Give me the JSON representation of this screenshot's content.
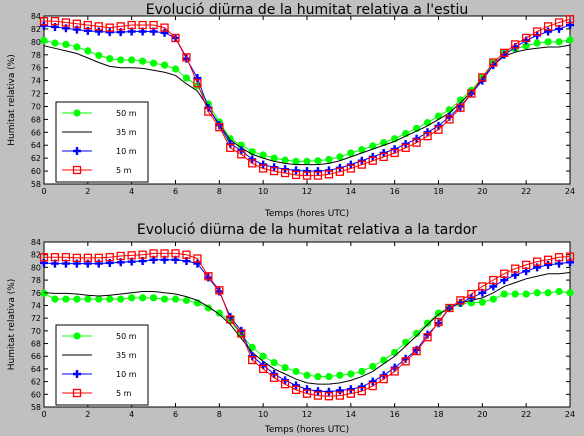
{
  "colors": {
    "background": "#c0c0c0",
    "plot": "#ffffff",
    "m50": "#00ff00",
    "m35": "#000000",
    "m10": "#0000ff",
    "m5": "#ff0000"
  },
  "chart_data": [
    {
      "type": "line",
      "title": "Evolució diürna de la humitat relativa a l'estiu",
      "xlabel": "Temps (hores UTC)",
      "ylabel": "Humitat relativa (%)",
      "xlim": [
        0,
        24
      ],
      "ylim": [
        58,
        84
      ],
      "xticks": [
        0,
        2,
        4,
        6,
        8,
        10,
        12,
        14,
        16,
        18,
        20,
        22,
        24
      ],
      "yticks": [
        58,
        60,
        62,
        64,
        66,
        68,
        70,
        72,
        74,
        76,
        78,
        80,
        82,
        84
      ],
      "grid": false,
      "legend_position": "bottom-left",
      "series": [
        {
          "name": "50 m",
          "marker": "circle",
          "color": "#00ff00",
          "x": [
            0,
            0.5,
            1,
            1.5,
            2,
            2.5,
            3,
            3.5,
            4,
            4.5,
            5,
            5.5,
            6,
            6.5,
            7,
            7.5,
            8,
            8.5,
            9,
            9.5,
            10,
            10.5,
            11,
            11.5,
            12,
            12.5,
            13,
            13.5,
            14,
            14.5,
            15,
            15.5,
            16,
            16.5,
            17,
            17.5,
            18,
            18.5,
            19,
            19.5,
            20,
            20.5,
            21,
            21.5,
            22,
            22.5,
            23,
            23.5,
            24
          ],
          "y": [
            80.2,
            79.8,
            79.6,
            79.2,
            78.6,
            77.9,
            77.4,
            77.2,
            77.2,
            77.0,
            76.7,
            76.4,
            75.8,
            74.4,
            73.2,
            70.4,
            67.6,
            65.0,
            64.0,
            63.0,
            62.5,
            62.0,
            61.7,
            61.5,
            61.5,
            61.6,
            61.8,
            62.2,
            62.8,
            63.3,
            63.9,
            64.4,
            65.0,
            65.8,
            66.6,
            67.5,
            68.5,
            69.5,
            71.0,
            72.5,
            74.5,
            76.8,
            78.3,
            78.9,
            79.4,
            79.8,
            80.0,
            80.0,
            80.3
          ]
        },
        {
          "name": "35 m",
          "marker": "none",
          "color": "#000000",
          "x": [
            0,
            0.5,
            1,
            1.5,
            2,
            2.5,
            3,
            3.5,
            4,
            4.5,
            5,
            5.5,
            6,
            6.5,
            7,
            7.5,
            8,
            8.5,
            9,
            9.5,
            10,
            10.5,
            11,
            11.5,
            12,
            12.5,
            13,
            13.5,
            14,
            14.5,
            15,
            15.5,
            16,
            16.5,
            17,
            17.5,
            18,
            18.5,
            19,
            19.5,
            20,
            20.5,
            21,
            21.5,
            22,
            22.5,
            23,
            23.5,
            24
          ],
          "y": [
            79.4,
            79.0,
            78.6,
            78.2,
            77.5,
            76.8,
            76.2,
            76.0,
            76.0,
            75.9,
            75.6,
            75.3,
            74.8,
            73.5,
            72.4,
            69.8,
            67.2,
            64.8,
            63.6,
            62.6,
            62.0,
            61.5,
            61.2,
            61.0,
            61.0,
            61.0,
            61.2,
            61.6,
            62.2,
            62.8,
            63.4,
            64.0,
            64.6,
            65.4,
            66.2,
            67.0,
            68.0,
            69.0,
            70.6,
            72.2,
            74.2,
            76.4,
            77.8,
            78.4,
            78.8,
            79.0,
            79.2,
            79.2,
            79.5
          ]
        },
        {
          "name": "10 m",
          "marker": "plus",
          "color": "#0000ff",
          "x": [
            0,
            0.5,
            1,
            1.5,
            2,
            2.5,
            3,
            3.5,
            4,
            4.5,
            5,
            5.5,
            6,
            6.5,
            7,
            7.5,
            8,
            8.5,
            9,
            9.5,
            10,
            10.5,
            11,
            11.5,
            12,
            12.5,
            13,
            13.5,
            14,
            14.5,
            15,
            15.5,
            16,
            16.5,
            17,
            17.5,
            18,
            18.5,
            19,
            19.5,
            20,
            20.5,
            21,
            21.5,
            22,
            22.5,
            23,
            23.5,
            24
          ],
          "y": [
            82.5,
            82.3,
            82.1,
            81.9,
            81.7,
            81.6,
            81.5,
            81.5,
            81.6,
            81.6,
            81.6,
            81.4,
            80.6,
            77.4,
            74.4,
            69.8,
            67.1,
            64.2,
            63.2,
            61.8,
            61.0,
            60.6,
            60.3,
            60.1,
            60.0,
            60.0,
            60.1,
            60.5,
            61.0,
            61.6,
            62.2,
            62.8,
            63.4,
            64.2,
            65.0,
            66.0,
            67.0,
            68.4,
            70.0,
            72.0,
            74.0,
            76.4,
            78.0,
            79.2,
            80.2,
            81.0,
            81.6,
            82.0,
            82.6
          ]
        },
        {
          "name": "5 m",
          "marker": "square",
          "color": "#ff0000",
          "x": [
            0,
            0.5,
            1,
            1.5,
            2,
            2.5,
            3,
            3.5,
            4,
            4.5,
            5,
            5.5,
            6,
            6.5,
            7,
            7.5,
            8,
            8.5,
            9,
            9.5,
            10,
            10.5,
            11,
            11.5,
            12,
            12.5,
            13,
            13.5,
            14,
            14.5,
            15,
            15.5,
            16,
            16.5,
            17,
            17.5,
            18,
            18.5,
            19,
            19.5,
            20,
            20.5,
            21,
            21.5,
            22,
            22.5,
            23,
            23.5,
            24
          ],
          "y": [
            83.2,
            83.2,
            83.0,
            82.8,
            82.6,
            82.4,
            82.2,
            82.4,
            82.6,
            82.6,
            82.6,
            82.2,
            80.6,
            77.6,
            73.6,
            69.2,
            66.8,
            63.6,
            62.6,
            61.2,
            60.4,
            60.0,
            59.7,
            59.4,
            59.3,
            59.3,
            59.5,
            59.9,
            60.4,
            61.0,
            61.6,
            62.2,
            62.8,
            63.6,
            64.4,
            65.4,
            66.4,
            68.0,
            69.8,
            72.0,
            74.5,
            76.8,
            78.3,
            79.6,
            80.6,
            81.6,
            82.4,
            83.0,
            83.5
          ]
        }
      ]
    },
    {
      "type": "line",
      "title": "Evolució diürna de la humitat relativa a la tardor",
      "xlabel": "Temps (hores UTC)",
      "ylabel": "Humitat relativa (%)",
      "xlim": [
        0,
        24
      ],
      "ylim": [
        58,
        84
      ],
      "xticks": [
        0,
        2,
        4,
        6,
        8,
        10,
        12,
        14,
        16,
        18,
        20,
        22,
        24
      ],
      "yticks": [
        58,
        60,
        62,
        64,
        66,
        68,
        70,
        72,
        74,
        76,
        78,
        80,
        82,
        84
      ],
      "grid": false,
      "legend_position": "bottom-left",
      "series": [
        {
          "name": "50 m",
          "marker": "circle",
          "color": "#00ff00",
          "x": [
            0,
            0.5,
            1,
            1.5,
            2,
            2.5,
            3,
            3.5,
            4,
            4.5,
            5,
            5.5,
            6,
            6.5,
            7,
            7.5,
            8,
            8.5,
            9,
            9.5,
            10,
            10.5,
            11,
            11.5,
            12,
            12.5,
            13,
            13.5,
            14,
            14.5,
            15,
            15.5,
            16,
            16.5,
            17,
            17.5,
            18,
            18.5,
            19,
            19.5,
            20,
            20.5,
            21,
            21.5,
            22,
            22.5,
            23,
            23.5,
            24
          ],
          "y": [
            75.9,
            75.0,
            75.0,
            75.0,
            75.0,
            75.0,
            75.0,
            75.0,
            75.2,
            75.2,
            75.2,
            75.0,
            75.0,
            74.8,
            74.4,
            73.6,
            72.8,
            71.6,
            69.4,
            67.4,
            66.0,
            65.0,
            64.2,
            63.6,
            63.0,
            62.8,
            62.8,
            63.0,
            63.2,
            63.6,
            64.4,
            65.4,
            66.6,
            68.2,
            69.6,
            71.2,
            72.8,
            73.6,
            74.3,
            74.4,
            74.5,
            75.0,
            75.8,
            75.8,
            75.8,
            76.0,
            76.0,
            76.2,
            76.0
          ]
        },
        {
          "name": "35 m",
          "marker": "none",
          "color": "#000000",
          "x": [
            0,
            0.5,
            1,
            1.5,
            2,
            2.5,
            3,
            3.5,
            4,
            4.5,
            5,
            5.5,
            6,
            6.5,
            7,
            7.5,
            8,
            8.5,
            9,
            9.5,
            10,
            10.5,
            11,
            11.5,
            12,
            12.5,
            13,
            13.5,
            14,
            14.5,
            15,
            15.5,
            16,
            16.5,
            17,
            17.5,
            18,
            18.5,
            19,
            19.5,
            20,
            20.5,
            21,
            21.5,
            22,
            22.5,
            23,
            23.5,
            24
          ],
          "y": [
            76.0,
            75.9,
            75.9,
            75.8,
            75.6,
            75.5,
            75.6,
            75.8,
            76.0,
            76.2,
            76.2,
            76.0,
            75.8,
            75.4,
            74.8,
            73.8,
            72.6,
            71.0,
            68.8,
            66.6,
            65.2,
            64.0,
            63.2,
            62.4,
            61.8,
            61.6,
            61.6,
            61.8,
            62.2,
            62.8,
            63.6,
            64.8,
            66.0,
            67.6,
            69.2,
            71.0,
            72.6,
            73.6,
            74.4,
            74.8,
            75.2,
            76.0,
            77.0,
            77.6,
            78.2,
            78.6,
            79.0,
            79.0,
            79.2
          ]
        },
        {
          "name": "10 m",
          "marker": "plus",
          "color": "#0000ff",
          "x": [
            0,
            0.5,
            1,
            1.5,
            2,
            2.5,
            3,
            3.5,
            4,
            4.5,
            5,
            5.5,
            6,
            6.5,
            7,
            7.5,
            8,
            8.5,
            9,
            9.5,
            10,
            10.5,
            11,
            11.5,
            12,
            12.5,
            13,
            13.5,
            14,
            14.5,
            15,
            15.5,
            16,
            16.5,
            17,
            17.5,
            18,
            18.5,
            19,
            19.5,
            20,
            20.5,
            21,
            21.5,
            22,
            22.5,
            23,
            23.5,
            24
          ],
          "y": [
            80.7,
            80.6,
            80.6,
            80.6,
            80.6,
            80.6,
            80.7,
            80.8,
            80.9,
            81.0,
            81.2,
            81.2,
            81.2,
            81.0,
            80.6,
            78.4,
            76.2,
            72.2,
            70.0,
            66.0,
            64.6,
            63.2,
            62.2,
            61.4,
            60.8,
            60.5,
            60.4,
            60.6,
            60.8,
            61.2,
            62.0,
            63.0,
            64.2,
            65.6,
            67.0,
            69.4,
            71.2,
            73.6,
            74.4,
            75.2,
            76.0,
            77.0,
            78.0,
            78.8,
            79.4,
            80.0,
            80.4,
            80.6,
            80.8
          ]
        },
        {
          "name": "5 m",
          "marker": "square",
          "color": "#ff0000",
          "x": [
            0,
            0.5,
            1,
            1.5,
            2,
            2.5,
            3,
            3.5,
            4,
            4.5,
            5,
            5.5,
            6,
            6.5,
            7,
            7.5,
            8,
            8.5,
            9,
            9.5,
            10,
            10.5,
            11,
            11.5,
            12,
            12.5,
            13,
            13.5,
            14,
            14.5,
            15,
            15.5,
            16,
            16.5,
            17,
            17.5,
            18,
            18.5,
            19,
            19.5,
            20,
            20.5,
            21,
            21.5,
            22,
            22.5,
            23,
            23.5,
            24
          ],
          "y": [
            81.6,
            81.6,
            81.6,
            81.5,
            81.5,
            81.5,
            81.6,
            81.8,
            81.9,
            82.0,
            82.2,
            82.2,
            82.2,
            82.0,
            81.4,
            78.6,
            76.4,
            71.8,
            69.6,
            65.4,
            64.0,
            62.6,
            61.6,
            60.7,
            60.1,
            59.8,
            59.7,
            59.8,
            60.1,
            60.5,
            61.3,
            62.4,
            63.6,
            65.2,
            66.8,
            69.0,
            71.4,
            73.6,
            74.8,
            75.8,
            77.0,
            78.0,
            79.0,
            79.8,
            80.4,
            80.9,
            81.2,
            81.6,
            81.7
          ]
        }
      ]
    }
  ]
}
